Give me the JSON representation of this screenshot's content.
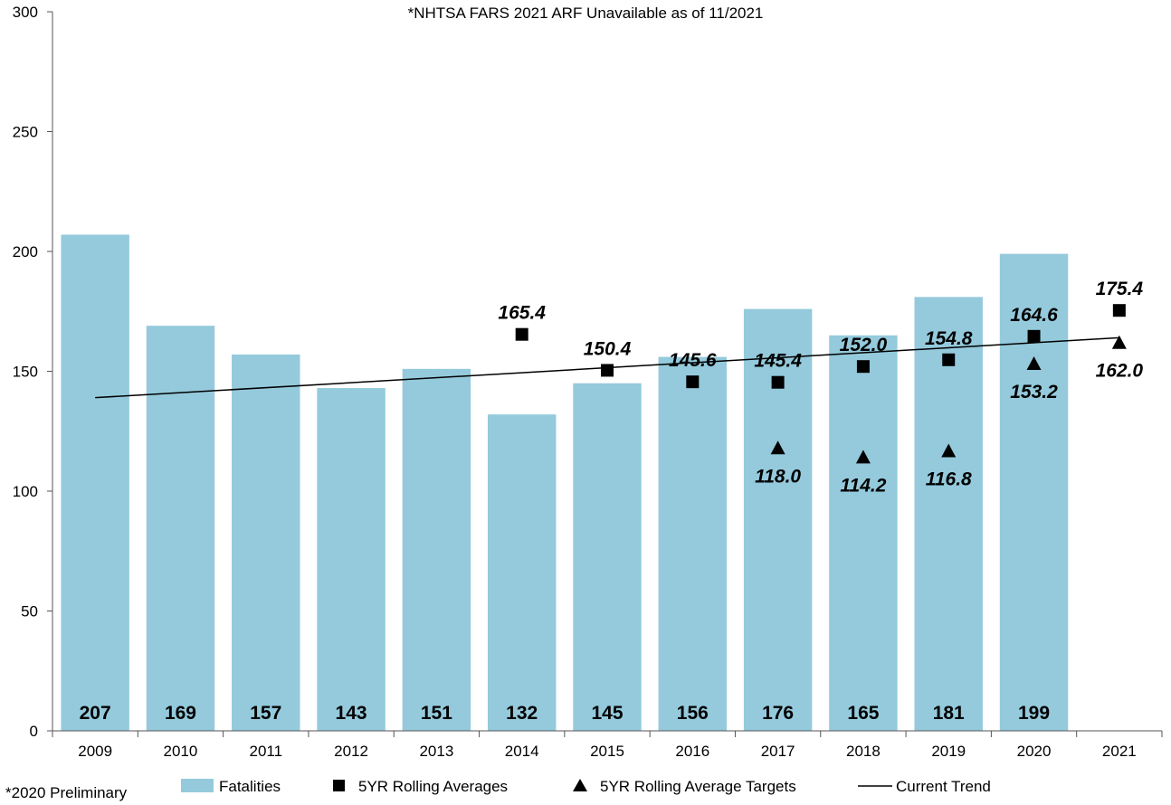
{
  "chart_data": {
    "type": "bar",
    "title": "",
    "annotation": "*NHTSA FARS 2021 ARF Unavailable as of 11/2021",
    "footnote": "*2020 Preliminary",
    "categories": [
      "2009",
      "2010",
      "2011",
      "2012",
      "2013",
      "2014",
      "2015",
      "2016",
      "2017",
      "2018",
      "2019",
      "2020",
      "2021"
    ],
    "ylim": [
      0,
      300
    ],
    "yticks": [
      0,
      50,
      100,
      150,
      200,
      250,
      300
    ],
    "grid": false,
    "legend_position": "bottom",
    "series": [
      {
        "name": "Fatalities",
        "kind": "bar",
        "color": "#94cadc",
        "values": [
          207,
          169,
          157,
          143,
          151,
          132,
          145,
          156,
          176,
          165,
          181,
          199,
          null
        ],
        "labels": [
          "207",
          "169",
          "157",
          "143",
          "151",
          "132",
          "145",
          "156",
          "176",
          "165",
          "181",
          "199",
          ""
        ]
      },
      {
        "name": "5YR Rolling Averages",
        "kind": "marker",
        "marker": "square",
        "color": "#000000",
        "values": [
          null,
          null,
          null,
          null,
          null,
          165.4,
          150.4,
          145.6,
          145.4,
          152.0,
          154.8,
          164.6,
          175.4
        ],
        "labels": [
          "",
          "",
          "",
          "",
          "",
          "165.4",
          "150.4",
          "145.6",
          "145.4",
          "152.0",
          "154.8",
          "164.6",
          "175.4"
        ]
      },
      {
        "name": "5YR Rolling Average Targets",
        "kind": "marker",
        "marker": "triangle",
        "color": "#000000",
        "values": [
          null,
          null,
          null,
          null,
          null,
          null,
          null,
          null,
          118.0,
          114.2,
          116.8,
          153.2,
          162.0
        ],
        "labels": [
          "",
          "",
          "",
          "",
          "",
          "",
          "",
          "",
          "118.0",
          "114.2",
          "116.8",
          "153.2",
          "162.0"
        ]
      },
      {
        "name": "Current Trend",
        "kind": "line",
        "color": "#000000",
        "start": {
          "x": "2009",
          "y": 139
        },
        "end": {
          "x": "2021",
          "y": 164
        }
      }
    ]
  }
}
